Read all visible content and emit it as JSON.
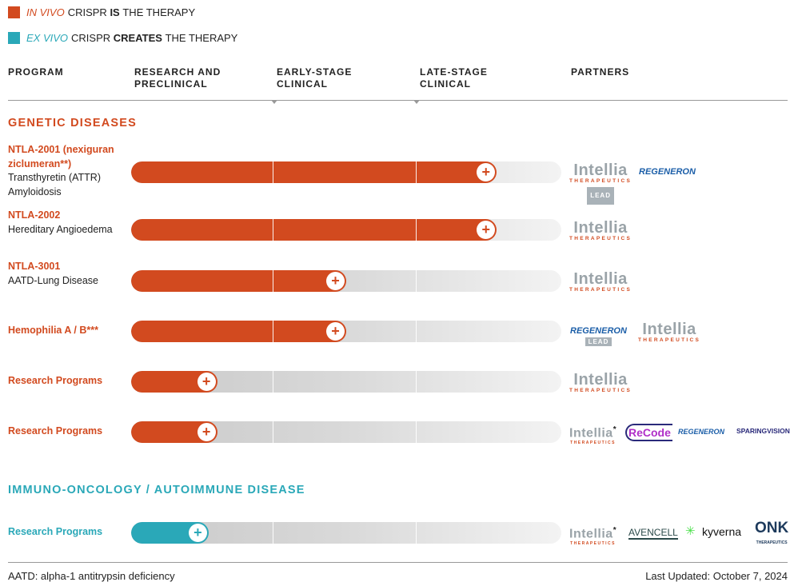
{
  "legend": [
    {
      "italic": "IN VIVO",
      "mid": "CRISPR",
      "bold": "IS",
      "rest": "THE THERAPY",
      "color": "#d24a1f"
    },
    {
      "italic": "EX VIVO",
      "mid": "CRISPR",
      "bold": "CREATES",
      "rest": "THE THERAPY",
      "color": "#2aa8b8"
    }
  ],
  "headers": {
    "program": "PROGRAM",
    "research": "RESEARCH AND PRECLINICAL",
    "early": "EARLY-STAGE CLINICAL",
    "late": "LATE-STAGE CLINICAL",
    "partners": "PARTNERS"
  },
  "sections": {
    "genetic": "GENETIC DISEASES",
    "immuno": "IMMUNO-ONCOLOGY / AUTOIMMUNE DISEASE"
  },
  "colors": {
    "in_vivo": "#d24a1f",
    "ex_vivo": "#2aa8b8"
  },
  "programs": [
    {
      "name": "NTLA-2001 (nexiguran ziclumeran**)",
      "desc": "Transthyretin (ATTR) Amyloidosis",
      "progress": 0.85
    },
    {
      "name": "NTLA-2002",
      "desc": "Hereditary Angioedema",
      "progress": 0.85
    },
    {
      "name": "NTLA-3001",
      "desc": "AATD-Lung Disease",
      "progress": 0.5
    },
    {
      "name": "Hemophilia A / B***",
      "desc": "",
      "progress": 0.5
    },
    {
      "name": "Research Programs",
      "desc": "",
      "progress": 0.2
    },
    {
      "name": "Research Programs",
      "desc": "",
      "progress": 0.2
    },
    {
      "name": "Research Programs",
      "desc": "",
      "progress": 0.18
    }
  ],
  "logos": {
    "intellia": "Intellia",
    "intellia_sub": "THERAPEUTICS",
    "lead": "LEAD",
    "regeneron": "REGENERON",
    "recode": "ReCode",
    "sparing": "SPARINGVISION",
    "avencell": "AVENCELL",
    "kyverna": "kyverna",
    "onk": "ONK",
    "onk_sub": "THERAPEUTICS",
    "asterisk": "*"
  },
  "footer": {
    "note": "AATD: alpha-1 antitrypsin deficiency",
    "updated": "Last Updated: October 7, 2024"
  }
}
